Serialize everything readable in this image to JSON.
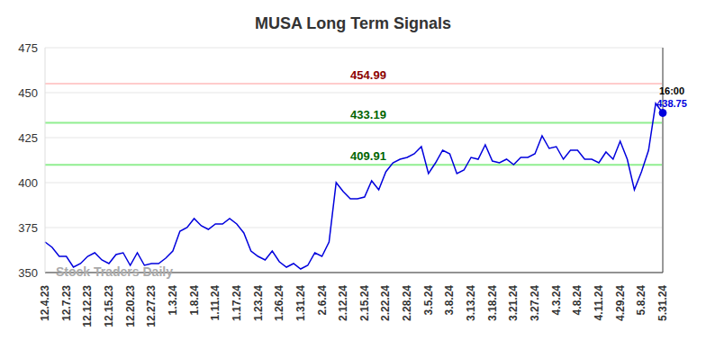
{
  "chart_data": {
    "type": "line",
    "title": "MUSA Long Term Signals",
    "watermark": "Stock Traders Daily",
    "time_label": "16:00",
    "color": "#0000dd",
    "grid": true,
    "ylim": [
      350,
      475
    ],
    "yticks": [
      350,
      375,
      400,
      425,
      450,
      475
    ],
    "categories": [
      "12.4.23",
      null,
      null,
      "12.7.23",
      null,
      null,
      "12.12.23",
      null,
      null,
      "12.15.23",
      null,
      null,
      "12.20.23",
      null,
      null,
      "12.27.23",
      null,
      null,
      "1.3.24",
      null,
      null,
      "1.8.24",
      null,
      null,
      "1.11.24",
      null,
      null,
      "1.17.24",
      null,
      null,
      "1.23.24",
      null,
      null,
      "1.26.24",
      null,
      null,
      "1.31.24",
      null,
      null,
      "2.6.24",
      null,
      null,
      "2.12.24",
      null,
      null,
      "2.15.24",
      null,
      null,
      "2.22.24",
      null,
      null,
      "2.28.24",
      null,
      null,
      "3.5.24",
      null,
      null,
      "3.8.24",
      null,
      null,
      "3.13.24",
      null,
      null,
      "3.18.24",
      null,
      null,
      "3.21.24",
      null,
      null,
      "3.27.24",
      null,
      null,
      "4.3.24",
      null,
      null,
      "4.8.24",
      null,
      null,
      "4.11.24",
      null,
      null,
      "4.29.24",
      null,
      null,
      "5.8.24",
      null,
      null,
      "5.31.24"
    ],
    "values": [
      367,
      364,
      359,
      359,
      353,
      355,
      359,
      361,
      357,
      355,
      360,
      361,
      354,
      361,
      354,
      355,
      355,
      358,
      362,
      373,
      375,
      380,
      376,
      374,
      377,
      377,
      380,
      377,
      372,
      362,
      359,
      357,
      362,
      356,
      353,
      355,
      352,
      354,
      361,
      359,
      367,
      400,
      395,
      391,
      391,
      392,
      401,
      396,
      406,
      411,
      413,
      414,
      416,
      420,
      405,
      411,
      418,
      416,
      405,
      407,
      414,
      413,
      421,
      412,
      411,
      413,
      410,
      414,
      414,
      416,
      426,
      419,
      420,
      413,
      418,
      418,
      413,
      413,
      411,
      417,
      413,
      423,
      413,
      396,
      406,
      418,
      444,
      438.75
    ],
    "levels": [
      {
        "value": 454.99,
        "color": "#ffcccc",
        "label_color": "#8b0000"
      },
      {
        "value": 433.19,
        "color": "#90ee90",
        "label_color": "#006400"
      },
      {
        "value": 409.91,
        "color": "#90ee90",
        "label_color": "#006400"
      }
    ]
  }
}
